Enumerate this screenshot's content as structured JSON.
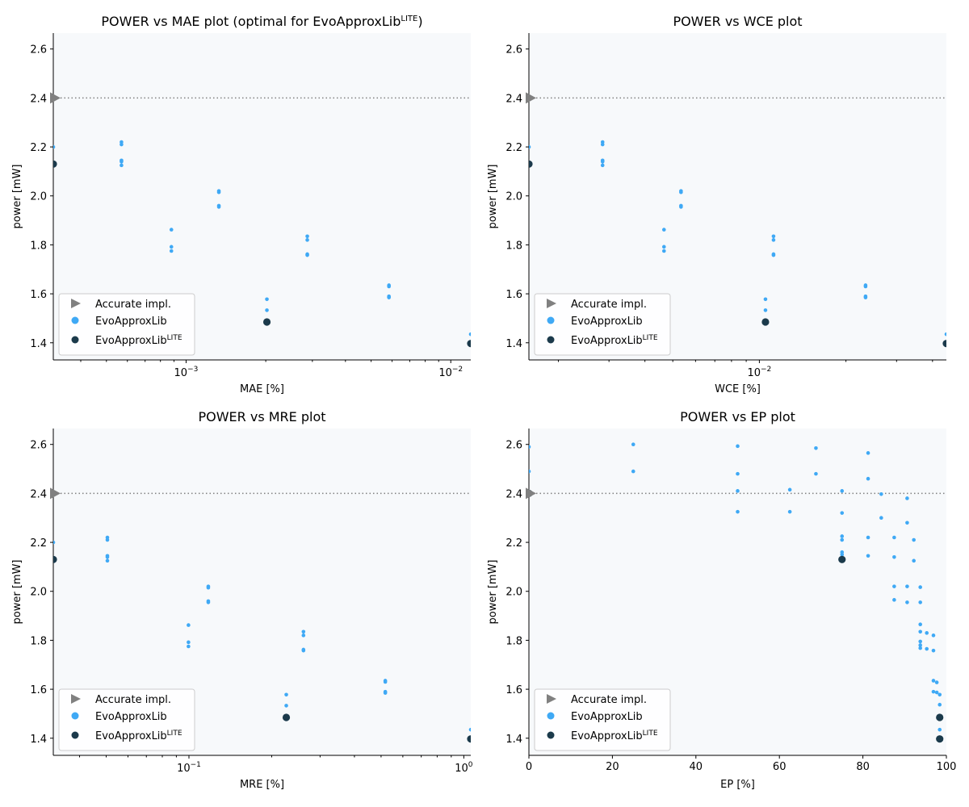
{
  "colors": {
    "evo": "#3fa9f5",
    "lite": "#1b3a4b",
    "accurate": "#808080",
    "plot_bg": "#f7f9fb",
    "ref_line": "#808080"
  },
  "legend": {
    "accurate": "Accurate impl.",
    "evo": "EvoApproxLib",
    "lite_base": "EvoApproxLib",
    "lite_sup": "LITE"
  },
  "chart_data": [
    {
      "type": "scatter",
      "title_main": "POWER vs MAE plot (optimal for EvoApproxLib",
      "title_sup": "LITE",
      "title_tail": ")",
      "xlabel": "MAE [%]",
      "ylabel": "power [mW]",
      "xscale": "log",
      "xlim": [
        0.000315,
        0.0119
      ],
      "ylim": [
        1.33,
        2.665
      ],
      "yticks": [
        "1.4",
        "1.6",
        "1.8",
        "2.0",
        "2.2",
        "2.4",
        "2.6"
      ],
      "xticks_major": [
        {
          "v": 0.001,
          "label": "10",
          "exp": "−3"
        },
        {
          "v": 0.01,
          "label": "10",
          "exp": "−2"
        }
      ],
      "accurate_power": 2.4,
      "evo": [
        [
          0.000315,
          2.2
        ],
        [
          0.00057,
          2.22
        ],
        [
          0.00057,
          2.21
        ],
        [
          0.00057,
          2.145
        ],
        [
          0.00057,
          2.14
        ],
        [
          0.00057,
          2.125
        ],
        [
          0.00133,
          2.02
        ],
        [
          0.00133,
          2.015
        ],
        [
          0.00133,
          1.96
        ],
        [
          0.00133,
          1.955
        ],
        [
          0.00088,
          1.862
        ],
        [
          0.00088,
          1.792
        ],
        [
          0.00088,
          1.775
        ],
        [
          0.00287,
          1.835
        ],
        [
          0.00287,
          1.82
        ],
        [
          0.00287,
          1.762
        ],
        [
          0.00287,
          1.758
        ],
        [
          0.00202,
          1.578
        ],
        [
          0.00202,
          1.533
        ],
        [
          0.00584,
          1.635
        ],
        [
          0.00584,
          1.63
        ],
        [
          0.00584,
          1.59
        ],
        [
          0.00584,
          1.585
        ],
        [
          0.0119,
          1.435
        ]
      ],
      "lite": [
        [
          0.000315,
          2.13
        ],
        [
          0.00202,
          1.485
        ],
        [
          0.0119,
          1.397
        ]
      ]
    },
    {
      "type": "scatter",
      "title_main": "POWER vs WCE plot",
      "title_sup": "",
      "title_tail": "",
      "xlabel": "WCE [%]",
      "ylabel": "power [mW]",
      "xscale": "log",
      "xlim": [
        0.00158,
        0.0447
      ],
      "ylim": [
        1.33,
        2.665
      ],
      "yticks": [
        "1.4",
        "1.6",
        "1.8",
        "2.0",
        "2.2",
        "2.4",
        "2.6"
      ],
      "xticks_major": [
        {
          "v": 0.01,
          "label": "10",
          "exp": "−2"
        }
      ],
      "accurate_power": 2.4,
      "evo": [
        [
          0.00158,
          2.2
        ],
        [
          0.00285,
          2.22
        ],
        [
          0.00285,
          2.21
        ],
        [
          0.00285,
          2.145
        ],
        [
          0.00285,
          2.14
        ],
        [
          0.00285,
          2.125
        ],
        [
          0.00534,
          2.02
        ],
        [
          0.00534,
          2.015
        ],
        [
          0.00534,
          1.96
        ],
        [
          0.00534,
          1.955
        ],
        [
          0.00466,
          1.862
        ],
        [
          0.00466,
          1.792
        ],
        [
          0.00466,
          1.775
        ],
        [
          0.0112,
          1.835
        ],
        [
          0.0112,
          1.82
        ],
        [
          0.0112,
          1.762
        ],
        [
          0.0112,
          1.758
        ],
        [
          0.0105,
          1.578
        ],
        [
          0.0105,
          1.533
        ],
        [
          0.0234,
          1.635
        ],
        [
          0.0234,
          1.63
        ],
        [
          0.0234,
          1.59
        ],
        [
          0.0234,
          1.585
        ],
        [
          0.0447,
          1.435
        ]
      ],
      "lite": [
        [
          0.00158,
          2.13
        ],
        [
          0.0105,
          1.485
        ],
        [
          0.0447,
          1.397
        ]
      ]
    },
    {
      "type": "scatter",
      "title_main": "POWER vs MRE plot",
      "title_sup": "",
      "title_tail": "",
      "xlabel": "MRE [%]",
      "ylabel": "power [mW]",
      "xscale": "log",
      "xlim": [
        0.0321,
        1.06
      ],
      "ylim": [
        1.33,
        2.665
      ],
      "yticks": [
        "1.4",
        "1.6",
        "1.8",
        "2.0",
        "2.2",
        "2.4",
        "2.6"
      ],
      "xticks_major": [
        {
          "v": 0.1,
          "label": "10",
          "exp": "−1"
        },
        {
          "v": 1,
          "label": "10",
          "exp": "0"
        }
      ],
      "accurate_power": 2.4,
      "evo": [
        [
          0.0321,
          2.2
        ],
        [
          0.0505,
          2.22
        ],
        [
          0.0505,
          2.21
        ],
        [
          0.0505,
          2.145
        ],
        [
          0.0505,
          2.14
        ],
        [
          0.0505,
          2.125
        ],
        [
          0.1176,
          2.02
        ],
        [
          0.1176,
          2.015
        ],
        [
          0.1176,
          1.96
        ],
        [
          0.1176,
          1.955
        ],
        [
          0.0996,
          1.862
        ],
        [
          0.0996,
          1.792
        ],
        [
          0.0996,
          1.775
        ],
        [
          0.261,
          1.835
        ],
        [
          0.261,
          1.82
        ],
        [
          0.261,
          1.762
        ],
        [
          0.261,
          1.758
        ],
        [
          0.226,
          1.578
        ],
        [
          0.226,
          1.533
        ],
        [
          0.518,
          1.635
        ],
        [
          0.518,
          1.63
        ],
        [
          0.518,
          1.59
        ],
        [
          0.518,
          1.585
        ],
        [
          1.06,
          1.435
        ]
      ],
      "lite": [
        [
          0.0321,
          2.13
        ],
        [
          0.226,
          1.485
        ],
        [
          1.06,
          1.397
        ]
      ]
    },
    {
      "type": "scatter",
      "title_main": "POWER vs EP plot",
      "title_sup": "",
      "title_tail": "",
      "xlabel": "EP [%]",
      "ylabel": "power [mW]",
      "xscale": "linear",
      "xlim": [
        0,
        100
      ],
      "ylim": [
        1.33,
        2.665
      ],
      "yticks": [
        "1.4",
        "1.6",
        "1.8",
        "2.0",
        "2.2",
        "2.4",
        "2.6"
      ],
      "xticks_major": [
        {
          "v": 0,
          "label": "0"
        },
        {
          "v": 20,
          "label": "20"
        },
        {
          "v": 40,
          "label": "40"
        },
        {
          "v": 60,
          "label": "60"
        },
        {
          "v": 80,
          "label": "80"
        },
        {
          "v": 100,
          "label": "100"
        }
      ],
      "accurate_power": 2.4,
      "evo": [
        [
          0,
          2.59
        ],
        [
          0,
          2.49
        ],
        [
          25,
          2.6
        ],
        [
          25,
          2.49
        ],
        [
          50,
          2.593
        ],
        [
          50,
          2.48
        ],
        [
          50,
          2.41
        ],
        [
          50,
          2.325
        ],
        [
          62.5,
          2.415
        ],
        [
          62.5,
          2.325
        ],
        [
          68.75,
          2.585
        ],
        [
          68.75,
          2.48
        ],
        [
          75,
          2.41
        ],
        [
          75,
          2.32
        ],
        [
          75,
          2.225
        ],
        [
          75,
          2.21
        ],
        [
          75,
          2.16
        ],
        [
          75,
          2.15
        ],
        [
          81.25,
          2.565
        ],
        [
          81.25,
          2.46
        ],
        [
          81.25,
          2.22
        ],
        [
          81.25,
          2.145
        ],
        [
          84.4,
          2.397
        ],
        [
          84.4,
          2.3
        ],
        [
          87.5,
          2.22
        ],
        [
          87.5,
          2.14
        ],
        [
          87.5,
          2.02
        ],
        [
          87.5,
          1.965
        ],
        [
          90.6,
          2.38
        ],
        [
          90.6,
          2.28
        ],
        [
          90.6,
          2.02
        ],
        [
          90.6,
          1.955
        ],
        [
          92.2,
          2.21
        ],
        [
          92.2,
          2.125
        ],
        [
          93.75,
          2.017
        ],
        [
          93.75,
          1.955
        ],
        [
          93.75,
          1.865
        ],
        [
          93.75,
          1.835
        ],
        [
          93.75,
          1.795
        ],
        [
          93.75,
          1.78
        ],
        [
          93.75,
          1.768
        ],
        [
          95.3,
          1.83
        ],
        [
          95.3,
          1.765
        ],
        [
          96.9,
          1.82
        ],
        [
          96.9,
          1.758
        ],
        [
          96.9,
          1.635
        ],
        [
          96.9,
          1.59
        ],
        [
          97.7,
          1.628
        ],
        [
          97.7,
          1.587
        ],
        [
          98.4,
          1.578
        ],
        [
          98.4,
          1.537
        ],
        [
          98.4,
          1.435
        ]
      ],
      "lite": [
        [
          0,
          2.4
        ],
        [
          75,
          2.13
        ],
        [
          98.4,
          1.485
        ],
        [
          98.4,
          1.397
        ]
      ]
    }
  ]
}
